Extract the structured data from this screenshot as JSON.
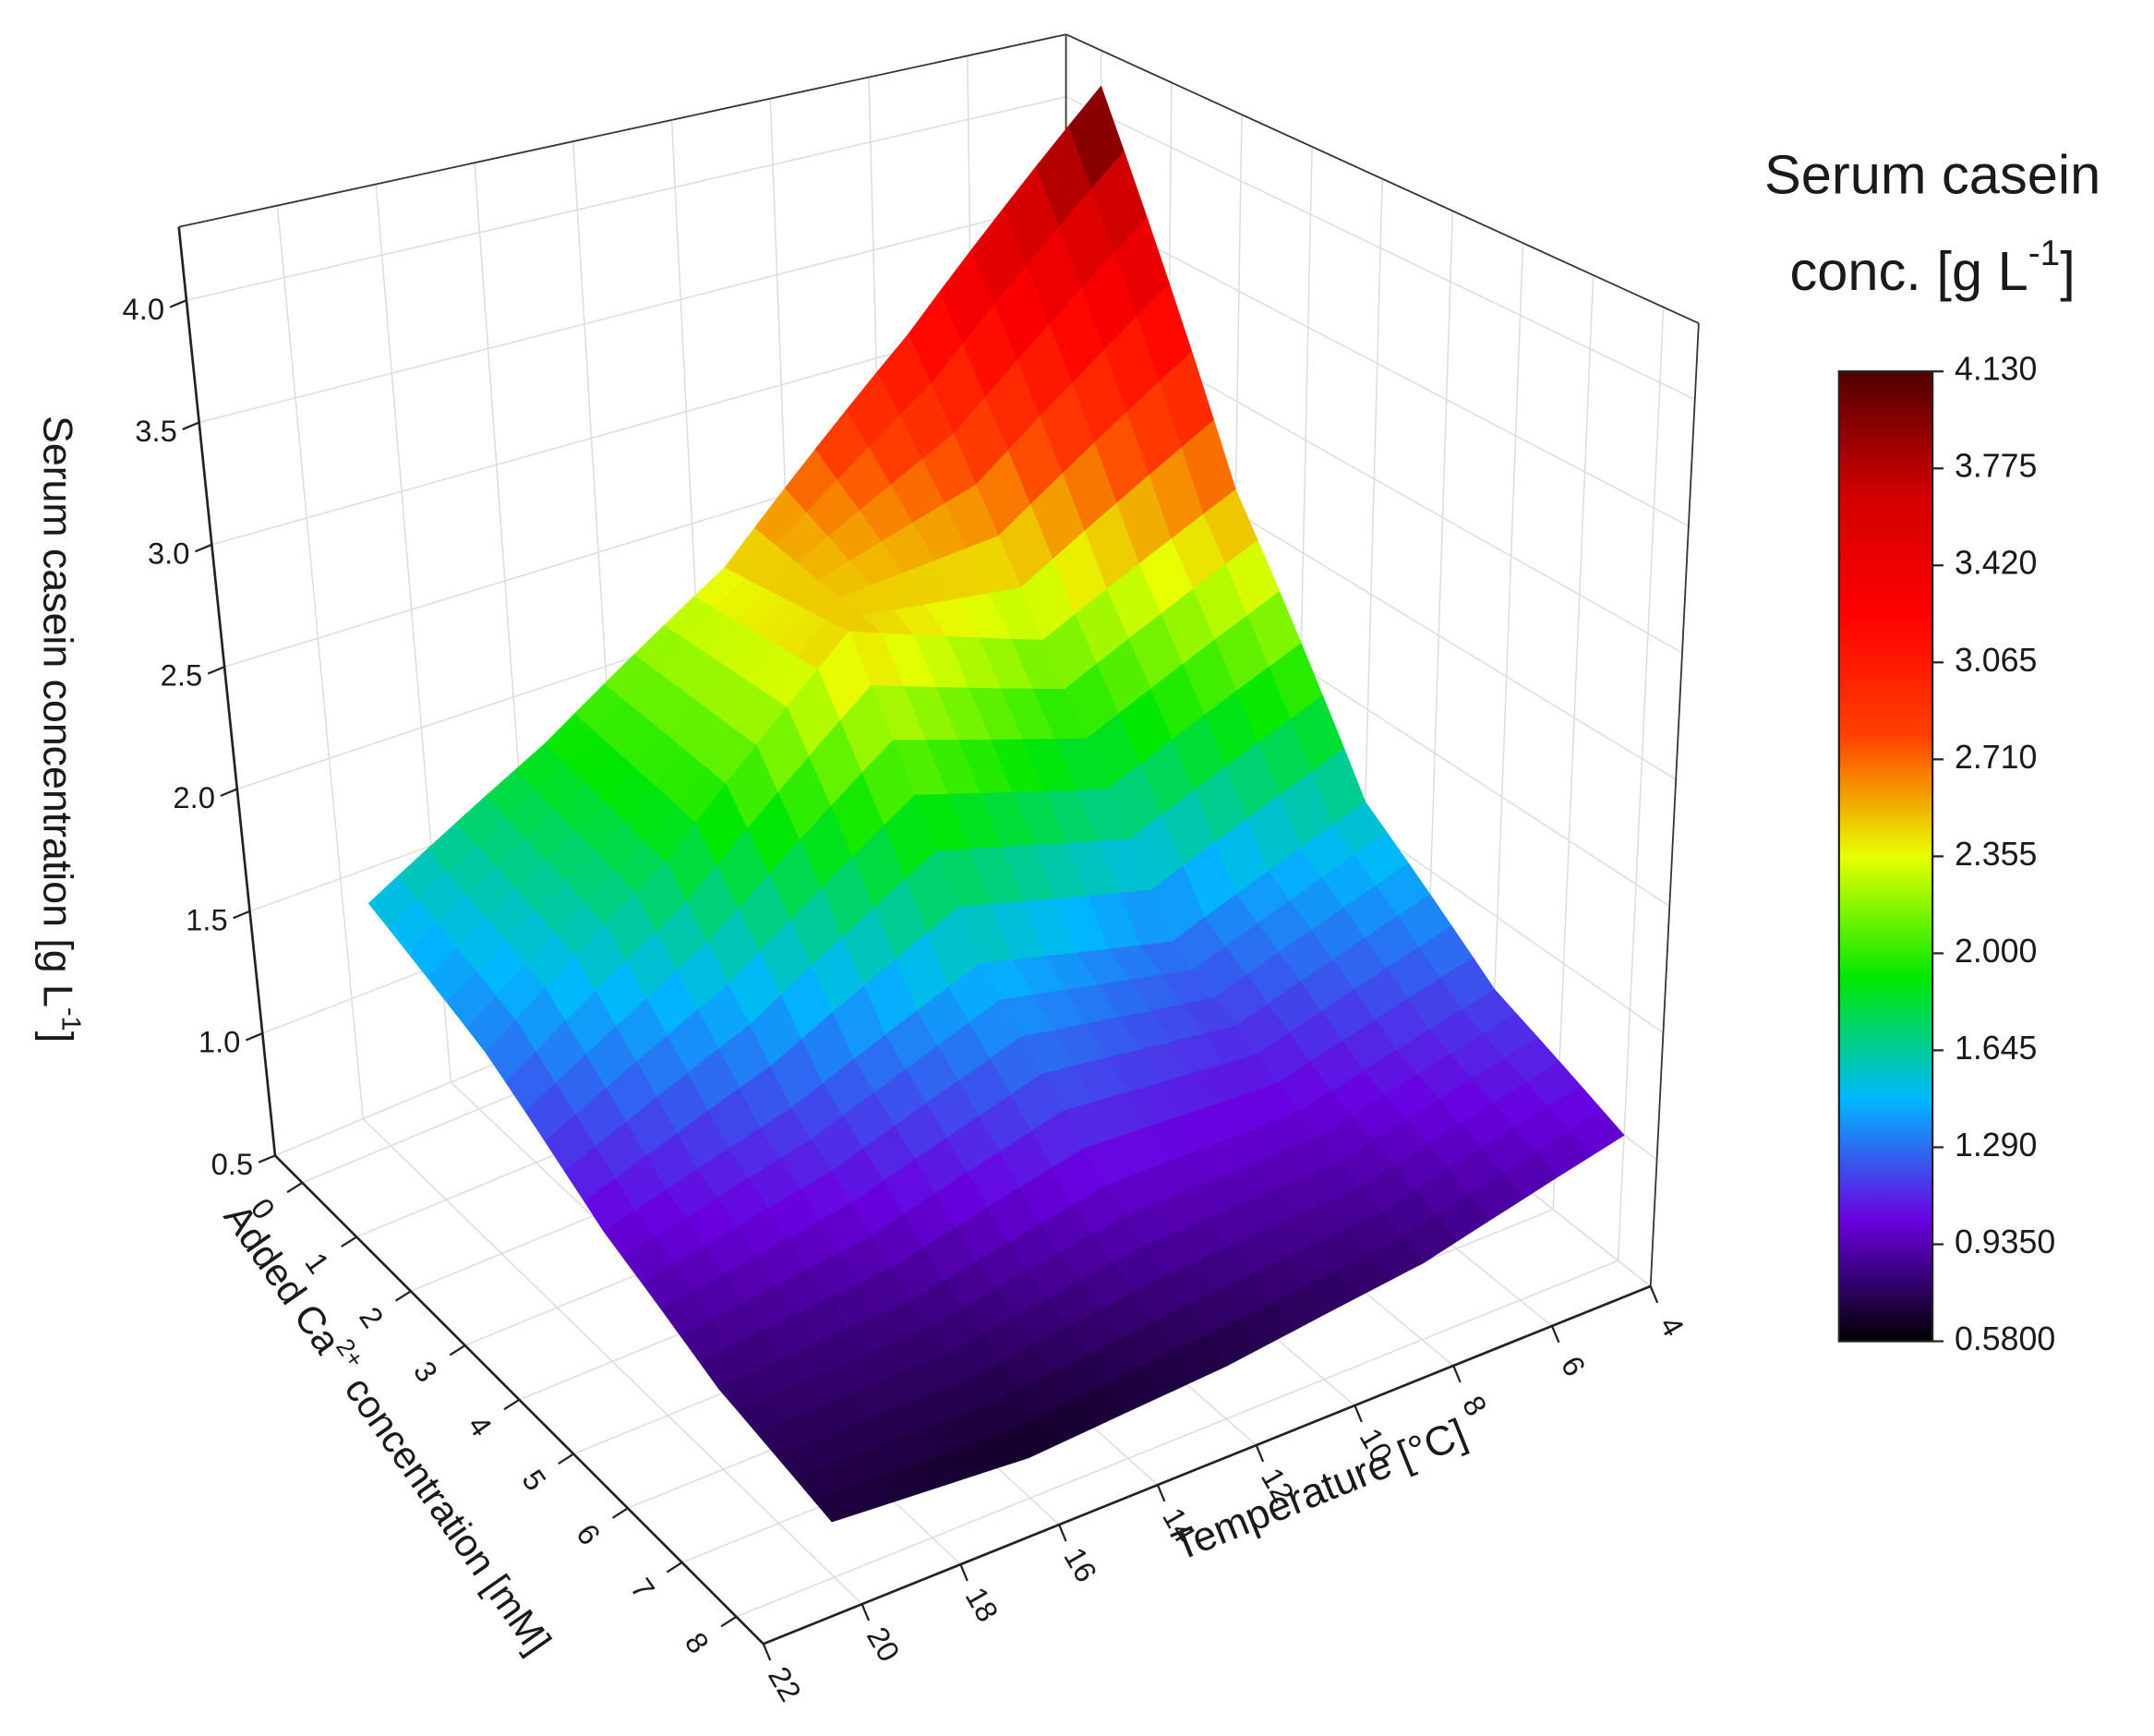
{
  "chart_data": {
    "type": "surface",
    "x_label": [
      "Added Ca",
      "2+",
      " concentration [mM]"
    ],
    "y_label": "Temperature [°C]",
    "z_label": [
      "Serum casein concentration [g L",
      "-1",
      "]"
    ],
    "colorbar_title": [
      [
        "Serum casein"
      ],
      [
        "conc. [g L",
        "-1",
        "]"
      ]
    ],
    "x": [
      0,
      2,
      4,
      6,
      8
    ],
    "y": [
      4,
      8,
      12,
      16,
      20
    ],
    "z": [
      [
        4.13,
        3.2,
        2.4,
        1.9,
        1.5
      ],
      [
        2.6,
        2.2,
        2.5,
        1.8,
        1.3
      ],
      [
        1.6,
        1.3,
        1.5,
        1.2,
        1.0
      ],
      [
        1.2,
        1.0,
        1.0,
        0.85,
        0.8
      ],
      [
        1.0,
        0.8,
        0.7,
        0.65,
        0.7
      ]
    ],
    "xlim": [
      -0.5,
      8.5
    ],
    "ylim": [
      4,
      22
    ],
    "zlim": [
      0.5,
      4.3
    ],
    "xticks": [
      0,
      1,
      2,
      3,
      4,
      5,
      6,
      7,
      8
    ],
    "yticks": [
      4,
      6,
      8,
      10,
      12,
      14,
      16,
      18,
      20,
      22
    ],
    "zticks": [
      0.5,
      {
        "value": 1,
        "label": "1.0"
      },
      1.5,
      {
        "value": 2,
        "label": "2.0"
      },
      2.5,
      {
        "value": 3,
        "label": "3.0"
      },
      3.5,
      {
        "value": 4,
        "label": "4.0"
      }
    ],
    "clim": [
      0.58,
      4.13
    ],
    "cticks": [
      {
        "value": 4.13,
        "label": "4.130"
      },
      {
        "value": 3.775,
        "label": "3.775"
      },
      {
        "value": 3.42,
        "label": "3.420"
      },
      {
        "value": 3.065,
        "label": "3.065"
      },
      {
        "value": 2.71,
        "label": "2.710"
      },
      {
        "value": 2.355,
        "label": "2.355"
      },
      {
        "value": 2,
        "label": "2.000"
      },
      {
        "value": 1.645,
        "label": "1.645"
      },
      {
        "value": 1.29,
        "label": "1.290"
      },
      {
        "value": 0.935,
        "label": "0.9350"
      },
      {
        "value": 0.58,
        "label": "0.5800"
      }
    ],
    "colormap": [
      "#000000",
      "#6a00e0",
      "#00b8ff",
      "#00e800",
      "#e8ff00",
      "#ff4000",
      "#ff0000",
      "#d00000",
      "#500000"
    ],
    "grid": true
  }
}
